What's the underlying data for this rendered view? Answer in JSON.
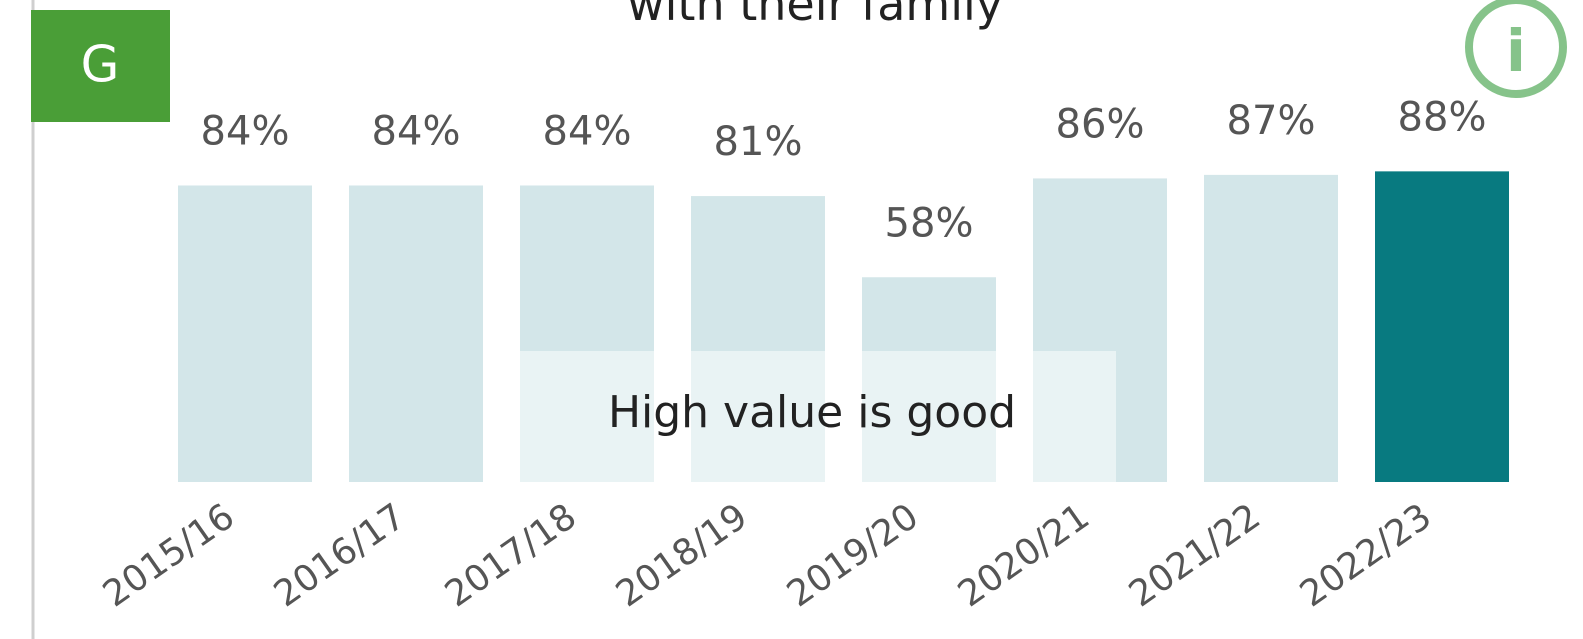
{
  "chart_data": {
    "type": "bar",
    "title": "with their family",
    "badge": "G",
    "info_icon": "i",
    "annotation": "High value is good",
    "categories": [
      "2015/16",
      "2016/17",
      "2017/18",
      "2018/19",
      "2019/20",
      "2020/21",
      "2021/22",
      "2022/23"
    ],
    "values": [
      84,
      84,
      84,
      81,
      58,
      86,
      87,
      88
    ],
    "value_labels": [
      "84%",
      "84%",
      "84%",
      "81%",
      "58%",
      "86%",
      "87%",
      "88%"
    ],
    "colors": [
      "#d3e6e9",
      "#d3e6e9",
      "#d3e6e9",
      "#d3e6e9",
      "#d3e6e9",
      "#d3e6e9",
      "#d3e6e9",
      "#087a80"
    ],
    "ylim": [
      0,
      100
    ]
  }
}
